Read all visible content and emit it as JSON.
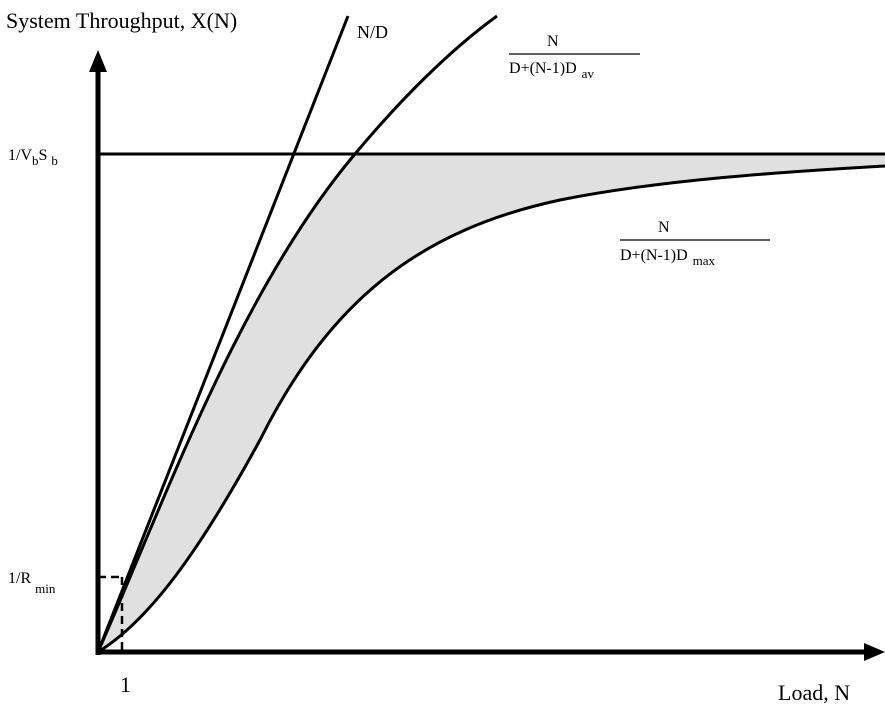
{
  "axes": {
    "y_title": "System Throughput, X(N)",
    "x_title": "Load, N",
    "x_tick": "1"
  },
  "y_marks": {
    "upper": {
      "prefix": "1/V",
      "sub1": "b",
      "mid": "S",
      "sub2": "b"
    },
    "lower": {
      "prefix": "1/R",
      "sub": "min"
    }
  },
  "curves": {
    "linear": {
      "label": "N/D"
    },
    "average": {
      "numerator": "N",
      "denominator": "D+(N-1)D",
      "sub": "av"
    },
    "maximum": {
      "numerator": "N",
      "denominator": "D+(N-1)D",
      "sub": "max"
    }
  }
}
